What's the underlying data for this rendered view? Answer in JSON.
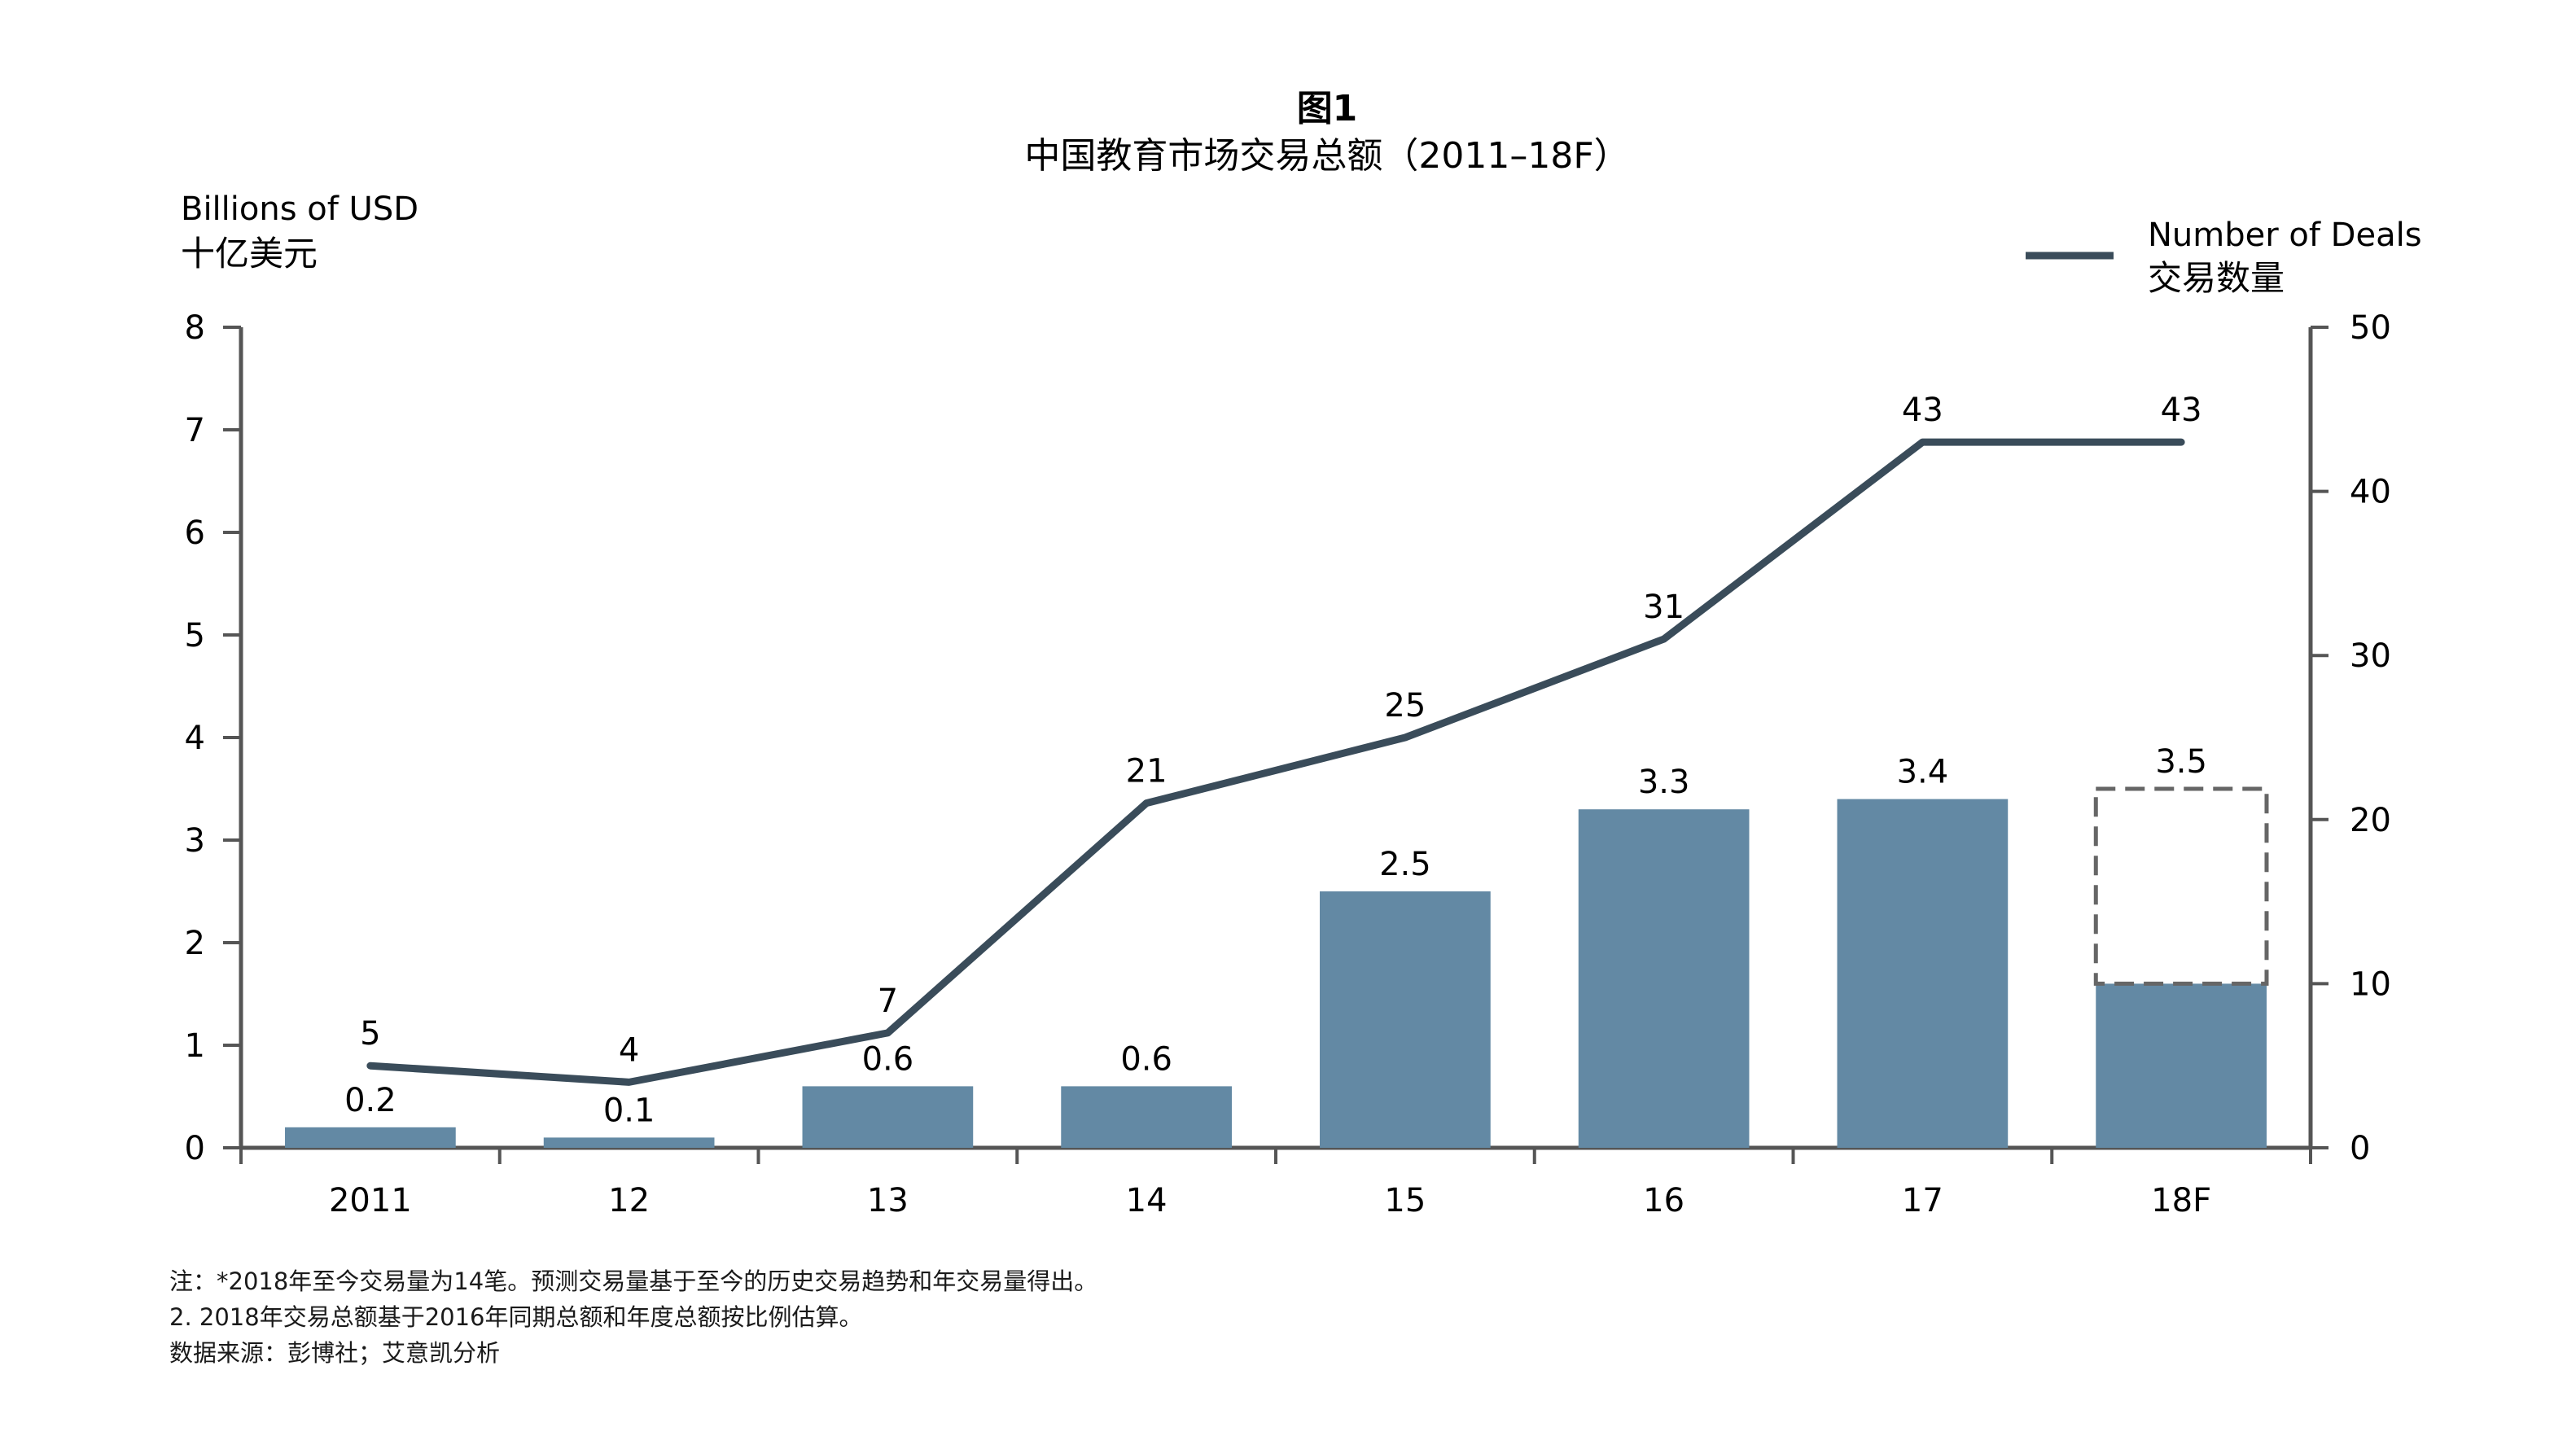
{
  "chart_data": {
    "type": "bar",
    "figure_label": "图1",
    "title": "中国教育市场交易总额（2011–18F）",
    "categories": [
      "2011",
      "12",
      "13",
      "14",
      "15",
      "16",
      "17",
      "18F"
    ],
    "y_left": {
      "label_en": "Billions of USD",
      "label_zh": "十亿美元",
      "range": [
        0,
        8
      ],
      "ticks": [
        "0",
        "1",
        "2",
        "3",
        "4",
        "5",
        "6",
        "7",
        "8"
      ]
    },
    "y_right": {
      "range": [
        0,
        50
      ],
      "ticks": [
        "0",
        "10",
        "20",
        "30",
        "40",
        "50"
      ]
    },
    "bars": {
      "values": [
        0.2,
        0.1,
        0.6,
        0.6,
        2.5,
        3.3,
        3.4,
        3.5
      ],
      "labels": [
        "0.2",
        "0.1",
        "0.6",
        "0.6",
        "2.5",
        "3.3",
        "3.4",
        "3.5"
      ],
      "forecast_solid_value": 1.6,
      "color": "#6389a4",
      "forecast_outline_color": "#666666"
    },
    "line": {
      "name_en": "Number of Deals",
      "name_zh": "交易数量",
      "values": [
        5,
        4,
        7,
        21,
        25,
        31,
        43,
        43
      ],
      "labels": [
        "5",
        "4",
        "7",
        "21",
        "25",
        "31",
        "43",
        "43"
      ],
      "color": "#3a4c5a",
      "axis": "right"
    },
    "legend_position": "top-right",
    "grid": false
  },
  "notes": [
    "注：*2018年至今交易量为14笔。预测交易量基于至今的历史交易趋势和年交易量得出。",
    "2. 2018年交易总额基于2016年同期总额和年度总额按比例估算。",
    "数据来源：彭博社；艾意凯分析"
  ]
}
